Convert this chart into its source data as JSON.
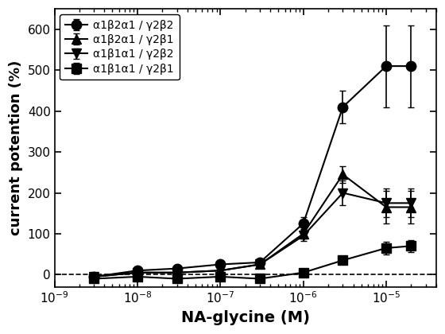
{
  "title": "",
  "xlabel": "NA-glycine (M)",
  "ylabel": "current potention (%)",
  "ylim": [
    -30,
    650
  ],
  "yticks": [
    0,
    100,
    200,
    300,
    400,
    500,
    600
  ],
  "background_color": "#ffffff",
  "series": [
    {
      "label": "α1β2α1 / γ2β2",
      "marker": "o",
      "x": [
        3e-09,
        1e-08,
        3e-08,
        1e-07,
        3e-07,
        1e-06,
        3e-06,
        1e-05,
        2e-05
      ],
      "y": [
        -5,
        10,
        15,
        25,
        30,
        125,
        410,
        510,
        510
      ],
      "yerr": [
        5,
        5,
        5,
        5,
        8,
        15,
        40,
        100,
        100
      ]
    },
    {
      "label": "α1β2α1 / γ2β1",
      "marker": "^",
      "x": [
        3e-09,
        1e-08,
        3e-08,
        1e-07,
        3e-07,
        1e-06,
        3e-06,
        1e-05,
        2e-05
      ],
      "y": [
        -5,
        5,
        5,
        10,
        25,
        100,
        245,
        165,
        165
      ],
      "yerr": [
        3,
        3,
        3,
        5,
        8,
        12,
        20,
        40,
        40
      ]
    },
    {
      "label": "α1β1α1 / γ2β2",
      "marker": "v",
      "x": [
        3e-09,
        1e-08,
        3e-08,
        1e-07,
        3e-07,
        1e-06,
        3e-06,
        1e-05,
        2e-05
      ],
      "y": [
        -5,
        5,
        5,
        10,
        25,
        95,
        200,
        175,
        175
      ],
      "yerr": [
        3,
        3,
        3,
        5,
        8,
        12,
        30,
        35,
        35
      ]
    },
    {
      "label": "α1β1α1 / γ2β1",
      "marker": "s",
      "x": [
        3e-09,
        1e-08,
        3e-08,
        1e-07,
        3e-07,
        1e-06,
        3e-06,
        1e-05,
        2e-05
      ],
      "y": [
        -10,
        -5,
        -10,
        -5,
        -10,
        5,
        35,
        65,
        70
      ],
      "yerr": [
        3,
        3,
        3,
        3,
        5,
        8,
        10,
        15,
        15
      ]
    }
  ]
}
